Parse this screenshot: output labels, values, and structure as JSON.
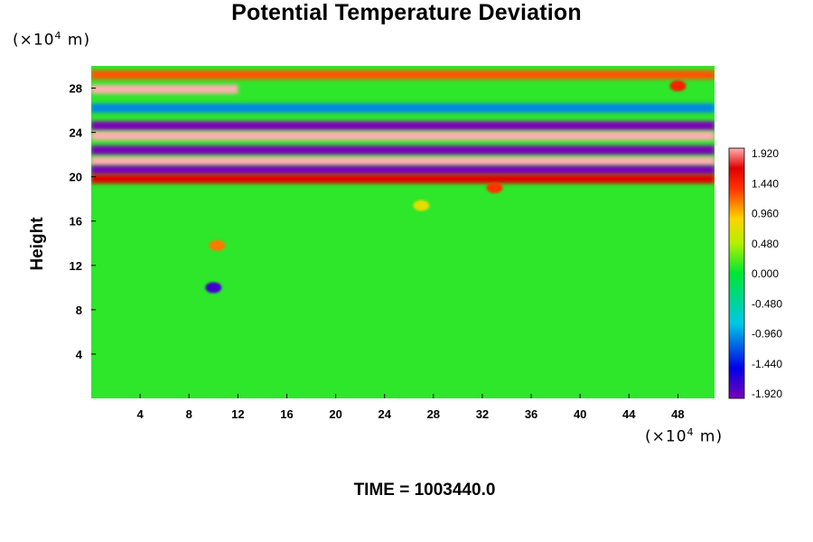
{
  "chart_data": {
    "type": "heatmap",
    "title": "Potential Temperature Deviation",
    "ylabel": "Height",
    "units_prefix": "(×10",
    "units_exp": "4",
    "units_suffix": " m)",
    "x_unit_label": "(×10^4 m)",
    "y_unit_label": "(×10^4 m)",
    "xlim": [
      0,
      51
    ],
    "ylim": [
      0,
      30
    ],
    "x_ticks": [
      4,
      8,
      12,
      16,
      20,
      24,
      28,
      32,
      36,
      40,
      44,
      48
    ],
    "y_ticks": [
      4,
      8,
      12,
      16,
      20,
      24,
      28
    ],
    "colorbar": {
      "min": -1.92,
      "max": 1.92,
      "tick_labels": [
        "1.920",
        "1.440",
        "0.960",
        "0.480",
        "0.000",
        "-0.480",
        "-0.960",
        "-1.440",
        "-1.920"
      ]
    },
    "bands": [
      {
        "y": 29.2,
        "x_from": 0,
        "x_to": 51,
        "value": 1.2
      },
      {
        "y": 27.9,
        "x_from": 0,
        "x_to": 12,
        "value": 1.92
      },
      {
        "y": 26.2,
        "x_from": 0,
        "x_to": 51,
        "value": -1.0
      },
      {
        "y": 24.6,
        "x_from": 0,
        "x_to": 51,
        "value": -1.92
      },
      {
        "y": 23.7,
        "x_from": 0,
        "x_to": 51,
        "value": 1.92
      },
      {
        "y": 22.4,
        "x_from": 0,
        "x_to": 51,
        "value": -1.92
      },
      {
        "y": 21.4,
        "x_from": 0,
        "x_to": 51,
        "value": 1.92
      },
      {
        "y": 20.6,
        "x_from": 0,
        "x_to": 51,
        "value": -1.92
      },
      {
        "y": 19.8,
        "x_from": 0,
        "x_to": 51,
        "value": 1.6
      }
    ],
    "features": [
      {
        "x": 10.0,
        "y": 10.0,
        "value": -1.7
      },
      {
        "x": 10.3,
        "y": 13.8,
        "value": 1.1
      },
      {
        "x": 27.0,
        "y": 17.4,
        "value": 0.7
      },
      {
        "x": 33.0,
        "y": 19.0,
        "value": 1.3
      },
      {
        "x": 48.0,
        "y": 28.2,
        "value": 1.4
      }
    ]
  },
  "time_label": "TIME = 1003440.0"
}
